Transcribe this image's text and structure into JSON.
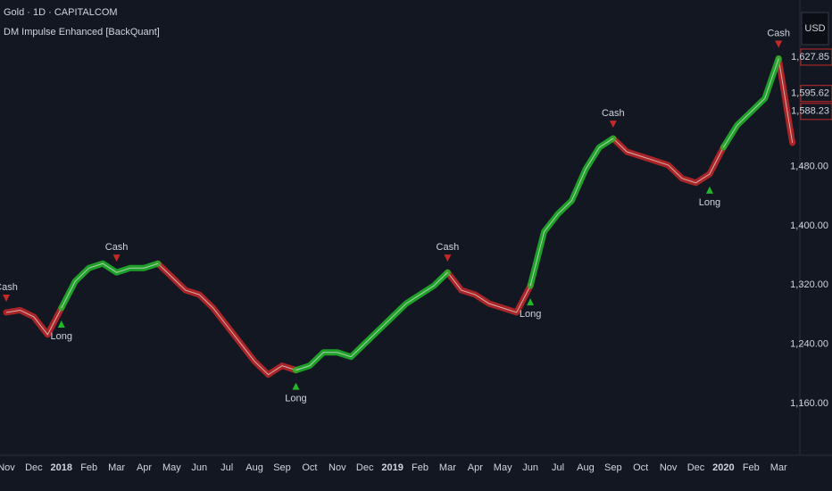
{
  "header": {
    "symbol": "Gold · 1D · CAPITALCOM",
    "indicator": "DM Impulse Enhanced [BackQuant]",
    "currency": "USD"
  },
  "chart_data": {
    "type": "line",
    "categories": [
      "Nov",
      null,
      "Dec",
      null,
      "2018",
      null,
      "Feb",
      null,
      "Mar",
      null,
      "Apr",
      null,
      "May",
      null,
      "Jun",
      null,
      "Jul",
      null,
      "Aug",
      null,
      "Sep",
      null,
      "Oct",
      null,
      "Nov",
      null,
      "Dec",
      null,
      "2019",
      null,
      "Feb",
      null,
      "Mar",
      null,
      "Apr",
      null,
      "May",
      null,
      "Jun",
      null,
      "Jul",
      null,
      "Aug",
      null,
      "Sep",
      null,
      "Oct",
      null,
      "Nov",
      null,
      "Dec",
      null,
      "2020",
      null,
      "Feb",
      null,
      "Mar",
      null
    ],
    "series": [
      {
        "color": "#c62828",
        "values": [
          1283,
          1286,
          1277,
          1253,
          1289,
          null,
          null,
          null,
          null,
          null,
          null,
          1349,
          1331,
          1313,
          1307,
          1289,
          1265,
          1241,
          1217,
          1199,
          1211,
          1205,
          null,
          null,
          null,
          null,
          null,
          null,
          null,
          null,
          null,
          null,
          1337,
          1313,
          1307,
          1295,
          1289,
          1283,
          1319,
          null,
          null,
          null,
          null,
          null,
          1518,
          1500,
          1494,
          1488,
          1482,
          1464,
          1458,
          1470,
          1506,
          null,
          null,
          null,
          1626,
          1512
        ]
      },
      {
        "color": "#22b82a",
        "values": [
          null,
          null,
          null,
          null,
          1289,
          1325,
          1343,
          1349,
          1337,
          1343,
          1343,
          1349,
          null,
          null,
          null,
          null,
          null,
          null,
          null,
          null,
          null,
          1205,
          1211,
          1229,
          1229,
          1223,
          1241,
          1259,
          1277,
          1295,
          1307,
          1319,
          1337,
          null,
          null,
          null,
          null,
          null,
          1319,
          1392,
          1416,
          1434,
          1476,
          1506,
          1518,
          null,
          null,
          null,
          null,
          null,
          null,
          null,
          1506,
          1536,
          1554,
          1572,
          1626,
          null
        ]
      }
    ],
    "signals": [
      "Cash",
      null,
      null,
      null,
      "Long",
      null,
      null,
      null,
      "Cash",
      null,
      null,
      null,
      null,
      null,
      null,
      null,
      null,
      null,
      null,
      null,
      null,
      "Long",
      null,
      null,
      null,
      null,
      null,
      null,
      null,
      null,
      null,
      null,
      "Cash",
      null,
      null,
      null,
      null,
      null,
      "Long",
      null,
      null,
      null,
      null,
      null,
      "Cash",
      null,
      null,
      null,
      null,
      null,
      null,
      "Long",
      null,
      null,
      null,
      null,
      "Cash",
      null
    ],
    "ylim": [
      1090,
      1705
    ],
    "yticks": [
      {
        "value": 1160,
        "label": "1,160.00"
      },
      {
        "value": 1240,
        "label": "1,240.00"
      },
      {
        "value": 1320,
        "label": "1,320.00"
      },
      {
        "value": 1400,
        "label": "1,400.00"
      },
      {
        "value": 1480,
        "label": "1,480.00"
      }
    ],
    "price_labels": [
      {
        "value": 1627.85,
        "label": "1,627.85"
      },
      {
        "value": 1595.62,
        "label": "1,595.62"
      },
      {
        "value": 1588.23,
        "label": "1,588.23"
      }
    ],
    "long_color": "#22b82a",
    "cash_color": "#c62828"
  }
}
